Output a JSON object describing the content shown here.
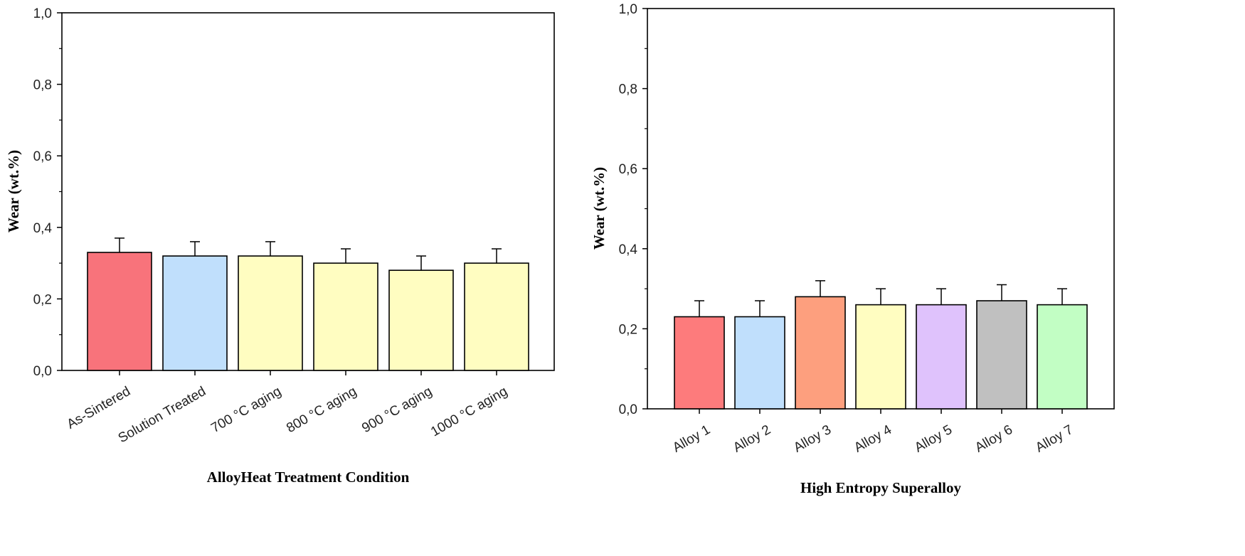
{
  "chart_data": [
    {
      "type": "bar",
      "title": "",
      "xlabel": "AlloyHeat Treatment Condition",
      "ylabel": "Wear (wt.%)",
      "ylim": [
        0,
        1.0
      ],
      "yticks": [
        "0,0",
        "0,2",
        "0,4",
        "0,6",
        "0,8",
        "1,0"
      ],
      "categories": [
        "As-Sintered",
        "Solution Treated",
        "700 °C aging",
        "800  °C aging",
        "900  °C aging",
        "1000  °C aging"
      ],
      "values": [
        0.33,
        0.32,
        0.32,
        0.3,
        0.28,
        0.3
      ],
      "errors": [
        0.04,
        0.04,
        0.04,
        0.04,
        0.04,
        0.04
      ],
      "colors": [
        "#f8737b",
        "#c0dffc",
        "#fffdc1",
        "#fffdc1",
        "#fffdc1",
        "#fffdc1"
      ]
    },
    {
      "type": "bar",
      "title": "",
      "xlabel": "High Entropy Superalloy",
      "ylabel": "Wear (wt.%)",
      "ylim": [
        0,
        1.0
      ],
      "yticks": [
        "0,0",
        "0,2",
        "0,4",
        "0,6",
        "0,8",
        "1,0"
      ],
      "categories": [
        "Alloy 1",
        "Alloy 2",
        "Alloy 3",
        "Alloy 4",
        "Alloy 5",
        "Alloy 6",
        "Alloy 7"
      ],
      "values": [
        0.23,
        0.23,
        0.28,
        0.26,
        0.26,
        0.27,
        0.26
      ],
      "errors": [
        0.04,
        0.04,
        0.04,
        0.04,
        0.04,
        0.04,
        0.04
      ],
      "colors": [
        "#fd7b7c",
        "#c0dffc",
        "#fd9f7e",
        "#fffdc1",
        "#dfc2fc",
        "#c0c0c0",
        "#c2fec4"
      ]
    }
  ]
}
